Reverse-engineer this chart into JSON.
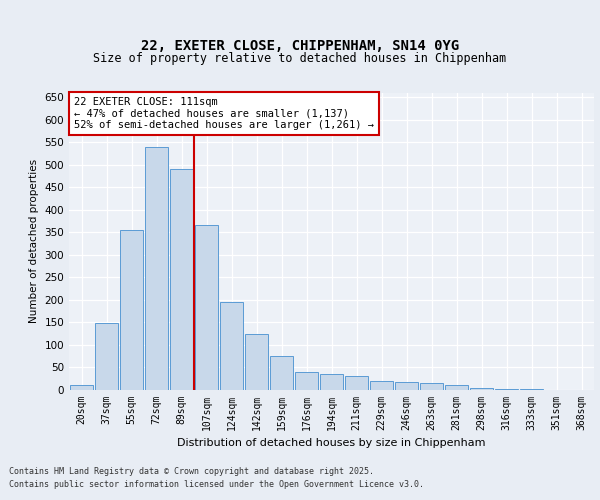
{
  "title_line1": "22, EXETER CLOSE, CHIPPENHAM, SN14 0YG",
  "title_line2": "Size of property relative to detached houses in Chippenham",
  "xlabel": "Distribution of detached houses by size in Chippenham",
  "ylabel": "Number of detached properties",
  "bar_labels": [
    "20sqm",
    "37sqm",
    "55sqm",
    "72sqm",
    "89sqm",
    "107sqm",
    "124sqm",
    "142sqm",
    "159sqm",
    "176sqm",
    "194sqm",
    "211sqm",
    "229sqm",
    "246sqm",
    "263sqm",
    "281sqm",
    "298sqm",
    "316sqm",
    "333sqm",
    "351sqm",
    "368sqm"
  ],
  "bar_values": [
    10,
    148,
    355,
    540,
    490,
    365,
    195,
    125,
    75,
    40,
    35,
    30,
    20,
    18,
    15,
    12,
    5,
    3,
    2,
    1,
    0
  ],
  "bar_color": "#c8d8ea",
  "bar_edge_color": "#5b9bd5",
  "vline_index": 4,
  "vline_color": "#cc0000",
  "annotation_text": "22 EXETER CLOSE: 111sqm\n← 47% of detached houses are smaller (1,137)\n52% of semi-detached houses are larger (1,261) →",
  "annotation_box_color": "#ffffff",
  "annotation_box_edge": "#cc0000",
  "ylim": [
    0,
    660
  ],
  "yticks": [
    0,
    50,
    100,
    150,
    200,
    250,
    300,
    350,
    400,
    450,
    500,
    550,
    600,
    650
  ],
  "footer_line1": "Contains HM Land Registry data © Crown copyright and database right 2025.",
  "footer_line2": "Contains public sector information licensed under the Open Government Licence v3.0.",
  "bg_color": "#e8edf4",
  "plot_bg_color": "#edf1f7",
  "fig_width": 6.0,
  "fig_height": 5.0,
  "dpi": 100
}
